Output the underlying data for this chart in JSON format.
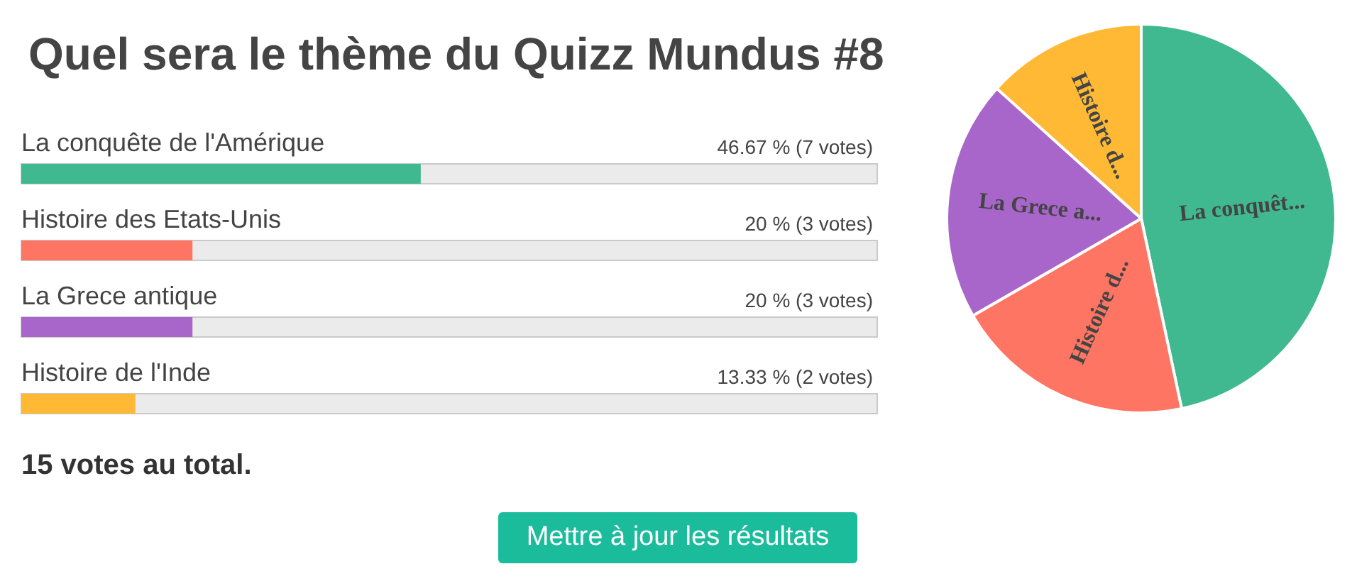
{
  "chart_data": [
    {
      "type": "bar",
      "orientation": "horizontal",
      "title": "Quel sera le thème du Quizz Mundus #8",
      "categories": [
        "La conquête de l'Amérique",
        "Histoire des Etats-Unis",
        "La Grece antique",
        "Histoire de l'Inde"
      ],
      "values": [
        46.67,
        20,
        20,
        13.33
      ],
      "colors": [
        "#40b990",
        "#ff7563",
        "#a866ca",
        "#ffb935"
      ],
      "value_labels": [
        "46.67 % (7 votes)",
        "20 % (3 votes)",
        "20 % (3 votes)",
        "13.33 % (2 votes)"
      ],
      "xlim": [
        0,
        100
      ],
      "tick_labels": "y",
      "annotations": [
        "15 votes au total.",
        "Mettre à jour les résultats"
      ]
    },
    {
      "type": "pie",
      "categories": [
        "La conquêt...",
        "Histoire d...",
        "La Grece a...",
        "Histoire d..."
      ],
      "values": [
        46.67,
        20,
        20,
        13.33
      ],
      "colors": [
        "#40b990",
        "#ff7563",
        "#a866ca",
        "#ffb935"
      ]
    }
  ]
}
